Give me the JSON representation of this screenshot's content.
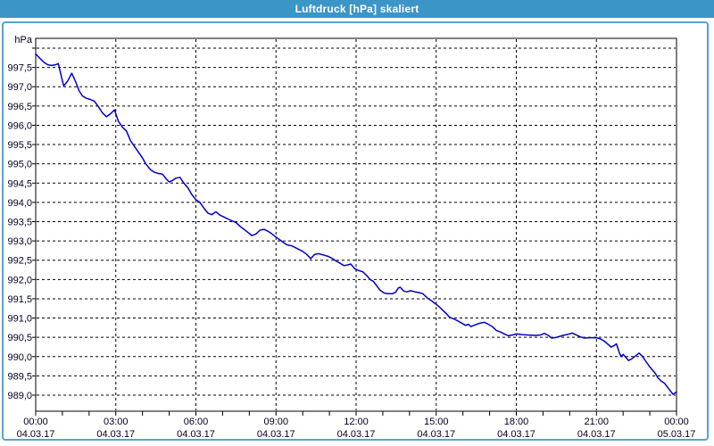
{
  "window": {
    "title": "Luftdruck [hPa] skaliert"
  },
  "colors": {
    "titlebar_bg": "#3B95C7",
    "titlebar_text": "#FFFFFF",
    "panel_border": "#58A2CE",
    "panel_bg": "#FFFFFF",
    "plot_border": "#000000",
    "grid": "#000000",
    "line": "#0000C8",
    "label_text": "#000020"
  },
  "chart_data": {
    "type": "line",
    "title": "Luftdruck [hPa] skaliert",
    "unit_label": "hPa",
    "xlabel": "",
    "ylabel": "hPa",
    "xlim_hours": [
      0,
      24
    ],
    "ylim": [
      988.6,
      998.25
    ],
    "grid": "dashed-black",
    "legend": "none",
    "y_ticks": [
      {
        "value": 998.0,
        "label": ""
      },
      {
        "value": 997.5,
        "label": "997,5"
      },
      {
        "value": 997.0,
        "label": "997,0"
      },
      {
        "value": 996.5,
        "label": "996,5"
      },
      {
        "value": 996.0,
        "label": "996,0"
      },
      {
        "value": 995.5,
        "label": "995,5"
      },
      {
        "value": 995.0,
        "label": "995,0"
      },
      {
        "value": 994.5,
        "label": "994,5"
      },
      {
        "value": 994.0,
        "label": "994,0"
      },
      {
        "value": 993.5,
        "label": "993,5"
      },
      {
        "value": 993.0,
        "label": "993,0"
      },
      {
        "value": 992.5,
        "label": "992,5"
      },
      {
        "value": 992.0,
        "label": "992,0"
      },
      {
        "value": 991.5,
        "label": "991,5"
      },
      {
        "value": 991.0,
        "label": "991,0"
      },
      {
        "value": 990.5,
        "label": "990,5"
      },
      {
        "value": 990.0,
        "label": "990,0"
      },
      {
        "value": 989.5,
        "label": "989,5"
      },
      {
        "value": 989.0,
        "label": "989,0"
      }
    ],
    "x_ticks": [
      {
        "hour": 0,
        "time": "00:00",
        "date": "04.03.17"
      },
      {
        "hour": 3,
        "time": "03:00",
        "date": "04.03.17"
      },
      {
        "hour": 6,
        "time": "06:00",
        "date": "04.03.17"
      },
      {
        "hour": 9,
        "time": "09:00",
        "date": "04.03.17"
      },
      {
        "hour": 12,
        "time": "12:00",
        "date": "04.03.17"
      },
      {
        "hour": 15,
        "time": "15:00",
        "date": "04.03.17"
      },
      {
        "hour": 18,
        "time": "18:00",
        "date": "04.03.17"
      },
      {
        "hour": 21,
        "time": "21:00",
        "date": "04.03.17"
      },
      {
        "hour": 24,
        "time": "00:00",
        "date": "05.03.17"
      }
    ],
    "minor_tick_every_hours": 1,
    "series": [
      {
        "name": "Luftdruck",
        "points": [
          [
            0.0,
            997.85
          ],
          [
            0.15,
            997.74
          ],
          [
            0.3,
            997.64
          ],
          [
            0.45,
            997.57
          ],
          [
            0.6,
            997.55
          ],
          [
            0.75,
            997.57
          ],
          [
            0.85,
            997.6
          ],
          [
            0.95,
            997.3
          ],
          [
            1.05,
            997.02
          ],
          [
            1.2,
            997.15
          ],
          [
            1.35,
            997.35
          ],
          [
            1.5,
            997.12
          ],
          [
            1.62,
            996.9
          ],
          [
            1.75,
            996.76
          ],
          [
            1.9,
            996.7
          ],
          [
            2.05,
            996.67
          ],
          [
            2.2,
            996.62
          ],
          [
            2.35,
            996.48
          ],
          [
            2.5,
            996.32
          ],
          [
            2.65,
            996.22
          ],
          [
            2.8,
            996.3
          ],
          [
            2.95,
            996.4
          ],
          [
            3.1,
            996.1
          ],
          [
            3.25,
            995.95
          ],
          [
            3.4,
            995.85
          ],
          [
            3.55,
            995.6
          ],
          [
            3.7,
            995.45
          ],
          [
            3.85,
            995.3
          ],
          [
            4.0,
            995.15
          ],
          [
            4.12,
            995.0
          ],
          [
            4.3,
            994.85
          ],
          [
            4.45,
            994.78
          ],
          [
            4.6,
            994.75
          ],
          [
            4.75,
            994.73
          ],
          [
            4.9,
            994.6
          ],
          [
            5.0,
            994.53
          ],
          [
            5.1,
            994.56
          ],
          [
            5.25,
            994.63
          ],
          [
            5.4,
            994.65
          ],
          [
            5.55,
            994.5
          ],
          [
            5.7,
            994.38
          ],
          [
            5.85,
            994.2
          ],
          [
            6.0,
            994.07
          ],
          [
            6.15,
            994.0
          ],
          [
            6.3,
            993.85
          ],
          [
            6.45,
            993.72
          ],
          [
            6.6,
            993.68
          ],
          [
            6.75,
            993.76
          ],
          [
            6.9,
            993.67
          ],
          [
            7.05,
            993.62
          ],
          [
            7.2,
            993.57
          ],
          [
            7.35,
            993.52
          ],
          [
            7.5,
            993.48
          ],
          [
            7.65,
            993.38
          ],
          [
            7.8,
            993.3
          ],
          [
            7.95,
            993.22
          ],
          [
            8.1,
            993.14
          ],
          [
            8.25,
            993.18
          ],
          [
            8.4,
            993.28
          ],
          [
            8.55,
            993.3
          ],
          [
            8.7,
            993.25
          ],
          [
            8.85,
            993.18
          ],
          [
            9.0,
            993.1
          ],
          [
            9.2,
            993.0
          ],
          [
            9.4,
            992.9
          ],
          [
            9.6,
            992.87
          ],
          [
            9.8,
            992.8
          ],
          [
            10.0,
            992.73
          ],
          [
            10.15,
            992.65
          ],
          [
            10.3,
            992.54
          ],
          [
            10.45,
            992.65
          ],
          [
            10.6,
            992.67
          ],
          [
            10.75,
            992.64
          ],
          [
            10.95,
            992.6
          ],
          [
            11.1,
            992.55
          ],
          [
            11.25,
            992.48
          ],
          [
            11.4,
            992.42
          ],
          [
            11.55,
            992.36
          ],
          [
            11.7,
            992.38
          ],
          [
            11.8,
            992.4
          ],
          [
            11.95,
            992.28
          ],
          [
            12.1,
            992.23
          ],
          [
            12.25,
            992.2
          ],
          [
            12.4,
            992.1
          ],
          [
            12.52,
            992.0
          ],
          [
            12.65,
            991.95
          ],
          [
            12.78,
            991.83
          ],
          [
            12.9,
            991.72
          ],
          [
            13.05,
            991.65
          ],
          [
            13.2,
            991.63
          ],
          [
            13.35,
            991.63
          ],
          [
            13.48,
            991.67
          ],
          [
            13.58,
            991.78
          ],
          [
            13.65,
            991.8
          ],
          [
            13.78,
            991.7
          ],
          [
            13.9,
            991.68
          ],
          [
            14.05,
            991.71
          ],
          [
            14.2,
            991.68
          ],
          [
            14.35,
            991.66
          ],
          [
            14.5,
            991.63
          ],
          [
            14.65,
            991.53
          ],
          [
            14.8,
            991.46
          ],
          [
            14.95,
            991.38
          ],
          [
            15.1,
            991.3
          ],
          [
            15.25,
            991.2
          ],
          [
            15.4,
            991.1
          ],
          [
            15.5,
            991.02
          ],
          [
            15.65,
            990.98
          ],
          [
            15.8,
            990.93
          ],
          [
            15.95,
            990.87
          ],
          [
            16.1,
            990.81
          ],
          [
            16.2,
            990.84
          ],
          [
            16.3,
            990.78
          ],
          [
            16.45,
            990.82
          ],
          [
            16.6,
            990.86
          ],
          [
            16.8,
            990.89
          ],
          [
            16.95,
            990.84
          ],
          [
            17.1,
            990.78
          ],
          [
            17.25,
            990.68
          ],
          [
            17.4,
            990.64
          ],
          [
            17.55,
            990.59
          ],
          [
            17.7,
            990.54
          ],
          [
            17.85,
            990.56
          ],
          [
            18.0,
            990.59
          ],
          [
            18.2,
            990.57
          ],
          [
            18.45,
            990.56
          ],
          [
            18.7,
            990.55
          ],
          [
            18.9,
            990.56
          ],
          [
            19.05,
            990.6
          ],
          [
            19.2,
            990.55
          ],
          [
            19.32,
            990.48
          ],
          [
            19.5,
            990.5
          ],
          [
            19.65,
            990.53
          ],
          [
            19.8,
            990.56
          ],
          [
            19.95,
            990.58
          ],
          [
            20.1,
            990.61
          ],
          [
            20.25,
            990.56
          ],
          [
            20.4,
            990.51
          ],
          [
            20.55,
            990.48
          ],
          [
            20.75,
            990.49
          ],
          [
            21.0,
            990.49
          ],
          [
            21.15,
            990.46
          ],
          [
            21.3,
            990.4
          ],
          [
            21.45,
            990.31
          ],
          [
            21.55,
            990.25
          ],
          [
            21.65,
            990.28
          ],
          [
            21.75,
            990.33
          ],
          [
            21.85,
            990.12
          ],
          [
            21.92,
            990.0
          ],
          [
            22.0,
            990.06
          ],
          [
            22.1,
            989.98
          ],
          [
            22.2,
            989.9
          ],
          [
            22.3,
            989.93
          ],
          [
            22.45,
            990.01
          ],
          [
            22.6,
            990.09
          ],
          [
            22.72,
            990.01
          ],
          [
            22.85,
            989.88
          ],
          [
            23.0,
            989.73
          ],
          [
            23.1,
            989.65
          ],
          [
            23.2,
            989.57
          ],
          [
            23.3,
            989.45
          ],
          [
            23.42,
            989.37
          ],
          [
            23.55,
            989.31
          ],
          [
            23.65,
            989.22
          ],
          [
            23.75,
            989.13
          ],
          [
            23.87,
            989.02
          ],
          [
            23.95,
            989.06
          ],
          [
            24.0,
            989.08
          ]
        ]
      }
    ]
  }
}
